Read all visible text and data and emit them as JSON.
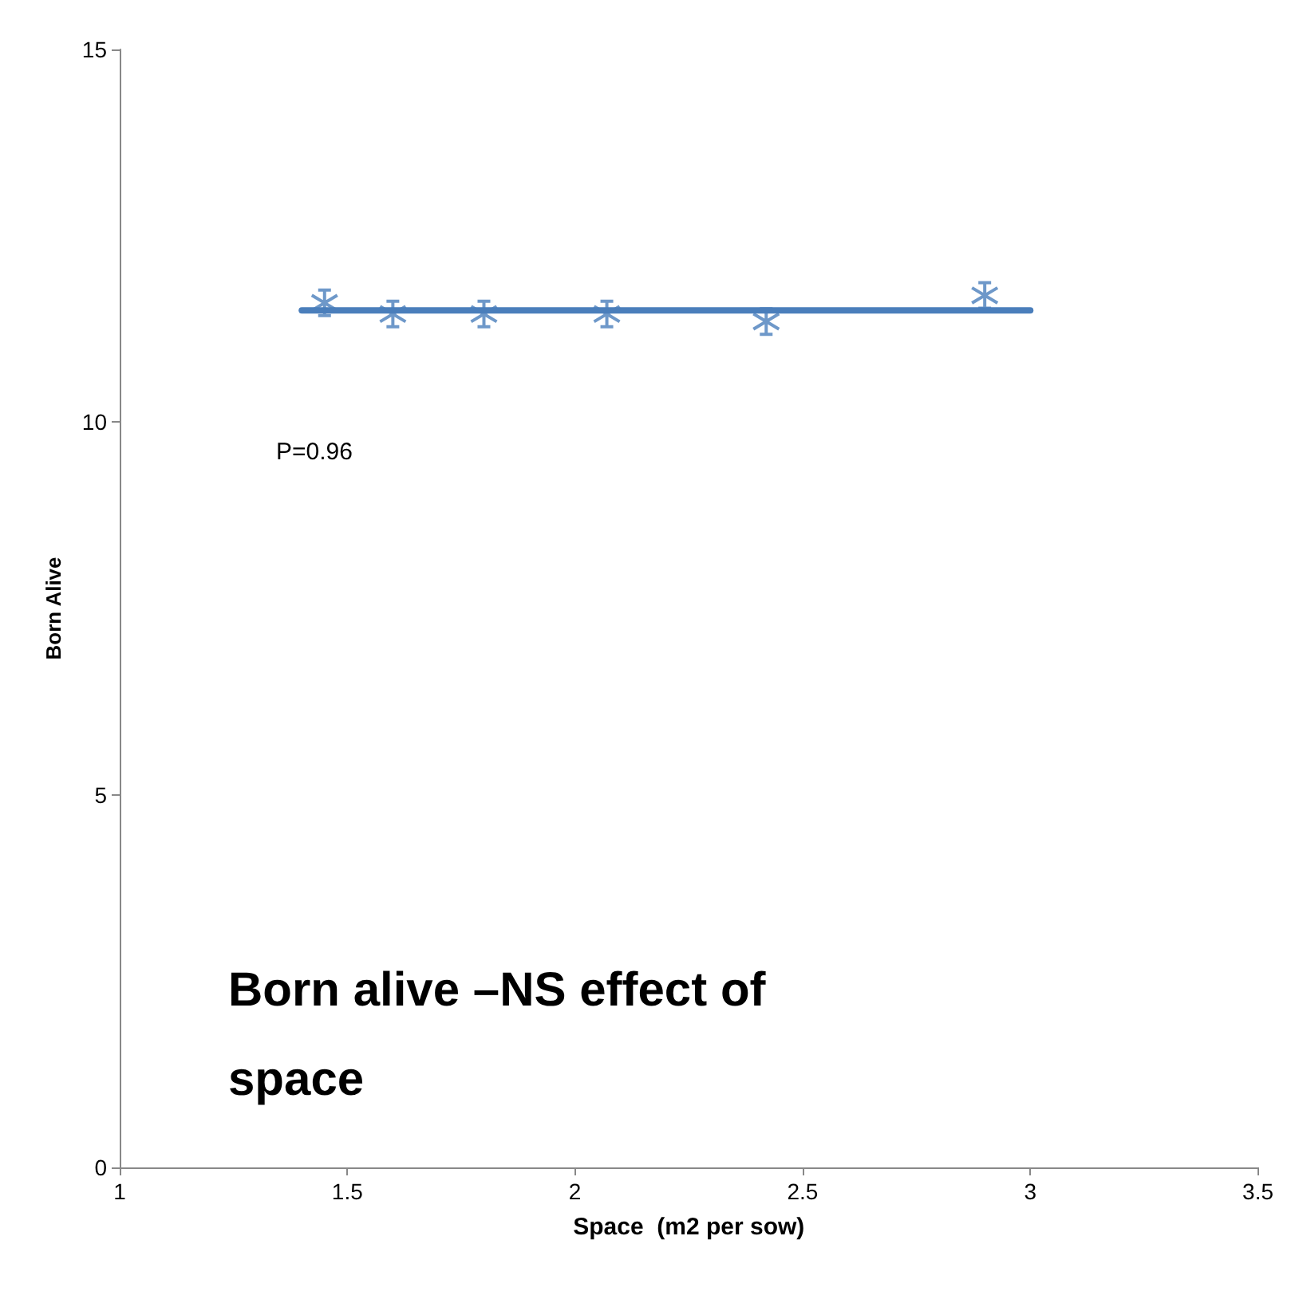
{
  "chart_data": {
    "type": "scatter",
    "xlabel": "Space  (m2 per sow)",
    "ylabel": "Born Alive",
    "series": [
      {
        "color": "#4a7ebb",
        "marker": "cross",
        "x": [
          1.45,
          1.6,
          1.8,
          2.07,
          2.42,
          2.9
        ],
        "values": [
          11.6,
          11.45,
          11.45,
          11.45,
          11.35,
          11.7
        ]
      },
      {
        "type": "line",
        "color": "#4a7ebb",
        "marker": "none",
        "line_style": "solid",
        "x": [
          1.4,
          3
        ],
        "values": [
          11.5,
          11.5
        ]
      }
    ],
    "xlim": [
      1,
      3.5
    ],
    "xticks": [
      1,
      1.5,
      2,
      2.5,
      3,
      3.5
    ],
    "ylim": [
      0,
      15
    ],
    "yticks": [
      0,
      5,
      10,
      15
    ],
    "grid": false,
    "annotations": [
      "P=0.96",
      "Born alive –NS effect of space"
    ]
  }
}
